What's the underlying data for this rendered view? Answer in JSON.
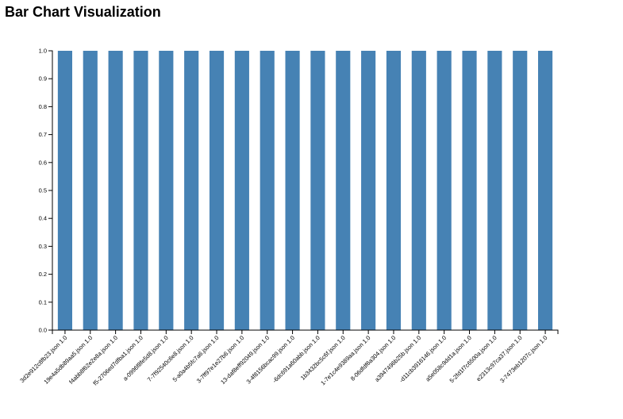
{
  "page": {
    "title": "Bar Chart Visualization"
  },
  "chart_data": {
    "type": "bar",
    "title": "",
    "xlabel": "",
    "ylabel": "",
    "ylim": [
      0,
      1
    ],
    "yticks": [
      "0.0",
      "0.1",
      "0.2",
      "0.3",
      "0.4",
      "0.5",
      "0.6",
      "0.7",
      "0.8",
      "0.9",
      "1.0"
    ],
    "grid": false,
    "bar_color": "#4682b4",
    "categories": [
      "3d2e912c8fb23.json 1.0",
      "19e4a5db89aa5.json 1.0",
      "f4abb8f62e2e8a.json 1.0",
      "f5-2706ed7dfba1.json 1.0",
      "a-0996f8fe5d8.json 1.0",
      "7-7f92540c6e8.json 1.0",
      "5-a0a4b5fc7a6.json 1.0",
      "3-7ff97e1e27b6.json 1.0",
      "13-daf8eff92049.json 1.0",
      "3-4f8156bcac99.json 1.0",
      "-6dc691a60abb.json 1.0",
      "1b3432bc5c6f.json 1.0",
      "1-7e1c4e9389aa.json 1.0",
      "8-06dfdf6a304.json 1.0",
      "a3947496b25b.json 1.0",
      "-d11cb3916146.json 1.0",
      "a5e058c9dd1a.json 1.0",
      "5-2fd1f7c6500a.json 1.0",
      "e2313c97ca37.json 1.0",
      "3-7473eb1207c.json 1.0"
    ],
    "values": [
      1.0,
      1.0,
      1.0,
      1.0,
      1.0,
      1.0,
      1.0,
      1.0,
      1.0,
      1.0,
      1.0,
      1.0,
      1.0,
      1.0,
      1.0,
      1.0,
      1.0,
      1.0,
      1.0,
      1.0
    ]
  }
}
